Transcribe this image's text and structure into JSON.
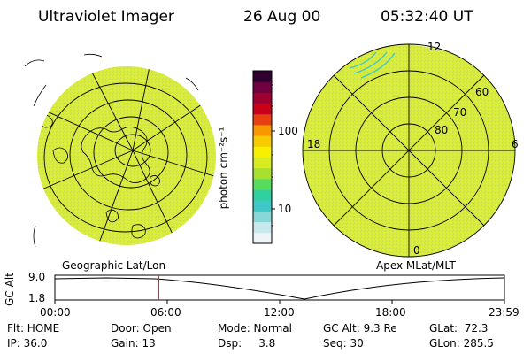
{
  "header": {
    "title": "Ultraviolet Imager",
    "date": "26 Aug 00",
    "time": "05:32:40 UT"
  },
  "colorbar": {
    "unit_label": "photon cm⁻²s⁻¹",
    "tick_100": "100",
    "tick_10": "10",
    "colors": [
      "#eef4f8",
      "#c8e8ee",
      "#88d8d8",
      "#40c8c8",
      "#30d0a0",
      "#58dc60",
      "#a8e030",
      "#d8ec20",
      "#f8f000",
      "#f8c800",
      "#f89800",
      "#e84010",
      "#c80018",
      "#a00030",
      "#700040",
      "#300030"
    ]
  },
  "left_panel": {
    "label": "Geographic Lat/Lon",
    "fill_color": "#d8ec3a"
  },
  "right_panel": {
    "label": "Apex MLat/MLT",
    "fill_color": "#d8ec3a",
    "mlt_labels": {
      "top": "12",
      "left": "18",
      "right": "6",
      "bottom": "0"
    },
    "lat_labels": [
      "60",
      "70",
      "80"
    ]
  },
  "altitude_strip": {
    "axis_label": "GC Alt",
    "y_max": "9.0",
    "y_min": "1.8",
    "x_ticks": [
      "00:00",
      "06:00",
      "12:00",
      "18:00",
      "23:59"
    ],
    "current_time_fraction": 0.231,
    "marker_color": "#e02020"
  },
  "footer": {
    "row1": {
      "flt": "Flt: HOME",
      "door": "Door: Open",
      "mode": "Mode: Normal",
      "gcalt": "GC Alt: 9.3 Re",
      "glat": "GLat:  72.3"
    },
    "row2": {
      "ip": "IP: 36.0",
      "gain": "Gain: 13",
      "dsp": "Dsp:     3.8",
      "seq": "Seq: 30",
      "glon": "GLon: 285.5"
    }
  }
}
